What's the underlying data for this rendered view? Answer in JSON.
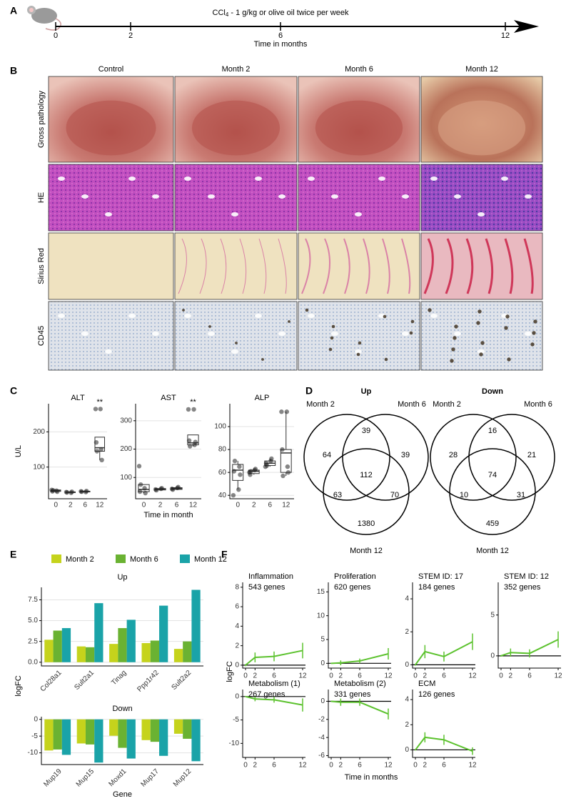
{
  "panel_labels": [
    "A",
    "B",
    "C",
    "D",
    "E",
    "F"
  ],
  "timeline": {
    "title": {
      "prefix": "CCl",
      "subscript": "4",
      "suffix": " - 1 g/kg or olive oil twice per week"
    },
    "ticks": [
      0,
      2,
      6,
      12
    ],
    "xlabel": "Time in months"
  },
  "histology": {
    "columns": [
      "Control",
      "Month 2",
      "Month 6",
      "Month 12"
    ],
    "rows": [
      "Gross pathology",
      "HE",
      "Sirius Red",
      "CD45"
    ]
  },
  "chart_data": [
    {
      "type": "box",
      "title": "ALT",
      "ylabel": "U/L",
      "annotation": "**",
      "categories": [
        "0",
        "2",
        "6",
        "12"
      ],
      "ylim": [
        10,
        280
      ],
      "yticks": [
        100,
        200
      ],
      "grid": true,
      "boxes": [
        {
          "whisker_low": 29,
          "q1": 31,
          "median": 33,
          "q3": 35,
          "whisker_high": 36,
          "points": [
            35,
            33,
            31,
            30,
            34
          ]
        },
        {
          "whisker_low": 27,
          "q1": 27.5,
          "median": 28.5,
          "q3": 29.5,
          "whisker_high": 30,
          "points": [
            29,
            27,
            28,
            30
          ]
        },
        {
          "whisker_low": 29,
          "q1": 29.5,
          "median": 30.5,
          "q3": 31.5,
          "whisker_high": 32,
          "points": [
            31,
            29,
            30,
            32
          ]
        },
        {
          "whisker_low": 120,
          "q1": 145,
          "median": 155,
          "q3": 185,
          "whisker_high": 185,
          "points": [
            265,
            265,
            170,
            150,
            145,
            120
          ]
        }
      ]
    },
    {
      "type": "box",
      "title": "AST",
      "xlabel": "Time in month",
      "annotation": "**",
      "categories": [
        "0",
        "2",
        "6",
        "12"
      ],
      "ylim": [
        25,
        360
      ],
      "yticks": [
        100,
        200,
        300
      ],
      "grid": true,
      "boxes": [
        {
          "whisker_low": 45,
          "q1": 50,
          "median": 58,
          "q3": 75,
          "whisker_high": 75,
          "points": [
            140,
            62,
            50,
            45,
            75
          ]
        },
        {
          "whisker_low": 55,
          "q1": 56,
          "median": 59,
          "q3": 61,
          "whisker_high": 62,
          "points": [
            58,
            60,
            55,
            62
          ]
        },
        {
          "whisker_low": 57,
          "q1": 58,
          "median": 61,
          "q3": 64,
          "whisker_high": 66,
          "points": [
            60,
            63,
            57,
            66
          ]
        },
        {
          "whisker_low": 210,
          "q1": 215,
          "median": 222,
          "q3": 250,
          "whisker_high": 250,
          "points": [
            340,
            340,
            230,
            215,
            210,
            225
          ]
        }
      ]
    },
    {
      "type": "box",
      "title": "ALP",
      "categories": [
        "0",
        "2",
        "6",
        "12"
      ],
      "ylim": [
        37,
        120
      ],
      "yticks": [
        40,
        60,
        80,
        100
      ],
      "grid": true,
      "boxes": [
        {
          "whisker_low": 45,
          "q1": 53,
          "median": 62,
          "q3": 67,
          "whisker_high": 70,
          "points": [
            40,
            45,
            61,
            65,
            70,
            58
          ]
        },
        {
          "whisker_low": 58,
          "q1": 59,
          "median": 61,
          "q3": 62,
          "whisker_high": 63,
          "points": [
            60,
            62,
            58,
            63,
            61
          ]
        },
        {
          "whisker_low": 65,
          "q1": 66,
          "median": 68,
          "q3": 70,
          "whisker_high": 72,
          "points": [
            65,
            70,
            68,
            72,
            66
          ]
        },
        {
          "whisker_low": 57,
          "q1": 60,
          "median": 77,
          "q3": 80,
          "whisker_high": 113,
          "points": [
            113,
            113,
            80,
            65,
            57,
            60
          ]
        }
      ]
    },
    {
      "type": "venn",
      "title": "Up",
      "sets": [
        "Month 2",
        "Month 6",
        "Month 12"
      ],
      "counts": [
        64,
        39,
        39,
        112,
        63,
        70,
        1380
      ]
    },
    {
      "type": "venn",
      "title": "Down",
      "sets": [
        "Month 2",
        "Month 6",
        "Month 12"
      ],
      "counts": [
        28,
        16,
        21,
        74,
        10,
        31,
        459
      ]
    },
    {
      "type": "grouped_bar",
      "ylabel": "logFC",
      "xlabel": "Gene",
      "series": [
        {
          "name": "Month 2",
          "color": "#c5d31c"
        },
        {
          "name": "Month 6",
          "color": "#6ab232"
        },
        {
          "name": "Month 12",
          "color": "#1aa3a8"
        }
      ],
      "panels": [
        {
          "title": "Up",
          "categories": [
            "Col28a1",
            "Sult2a1",
            "Tinag",
            "Ppp1r42",
            "Sult2a2"
          ],
          "values": [
            [
              2.7,
              1.9,
              2.2,
              2.3,
              1.6
            ],
            [
              3.8,
              1.8,
              4.1,
              2.6,
              2.5
            ],
            [
              4.1,
              7.1,
              5.1,
              6.8,
              8.7
            ]
          ],
          "ylim": [
            -0.45,
            9
          ],
          "yticks": [
            {
              "value": 0,
              "label": "0.0"
            },
            {
              "value": 2.5,
              "label": "2.5"
            },
            {
              "value": 5,
              "label": "5.0"
            },
            {
              "value": 7.5,
              "label": "7.5"
            }
          ]
        },
        {
          "title": "Down",
          "categories": [
            "Mup19",
            "Mup15",
            "Moxd1",
            "Mup17",
            "Mup12"
          ],
          "values": [
            [
              -9.3,
              -7.2,
              -4.9,
              -6.2,
              -4.3
            ],
            [
              -9.0,
              -7.5,
              -8.5,
              -6.7,
              -5.8
            ],
            [
              -10.6,
              -12.9,
              -11.7,
              -10.9,
              -12.5
            ]
          ],
          "ylim": [
            -13.5,
            0.8
          ],
          "yticks": [
            -10,
            -5,
            0
          ]
        }
      ]
    },
    {
      "type": "line",
      "xlabel": "Time in months",
      "ylabel": "logFC",
      "color": "#5cc22e",
      "x": [
        0,
        2,
        6,
        12
      ],
      "xlim": [
        -0.6,
        12.6
      ],
      "xticks": [
        0,
        2,
        6,
        12
      ],
      "panels": [
        {
          "title": "Inflammation",
          "subtitle": "543 genes",
          "values": [
            0,
            0.8,
            0.9,
            1.5
          ],
          "errors": [
            0.1,
            0.5,
            0.5,
            0.8
          ],
          "ylim": [
            -0.3,
            8.5
          ],
          "yticks": [
            0,
            2,
            4,
            6,
            8
          ]
        },
        {
          "title": "Proliferation",
          "subtitle": "620 genes",
          "values": [
            0,
            0.1,
            0.5,
            2
          ],
          "errors": [
            0.1,
            0.5,
            0.5,
            1.2
          ],
          "ylim": [
            -1,
            17
          ],
          "yticks": [
            0,
            5,
            10,
            15
          ]
        },
        {
          "title": "STEM ID: 17",
          "subtitle": "184 genes",
          "values": [
            0,
            0.8,
            0.5,
            1.4
          ],
          "errors": [
            0.05,
            0.4,
            0.3,
            0.5
          ],
          "ylim": [
            -0.2,
            5
          ],
          "yticks": [
            0,
            2,
            4
          ]
        },
        {
          "title": "STEM ID: 12",
          "subtitle": "352 genes",
          "values": [
            0,
            0.4,
            0.3,
            2
          ],
          "errors": [
            0.1,
            0.5,
            0.5,
            1
          ],
          "ylim": [
            -1.5,
            9
          ],
          "yticks": [
            0,
            5
          ]
        },
        {
          "title": "Metabolism (1)",
          "subtitle": "267 genes",
          "values": [
            0,
            -0.5,
            -0.7,
            -1.8
          ],
          "errors": [
            0.1,
            0.5,
            0.6,
            1.4
          ],
          "ylim": [
            -13,
            1.5
          ],
          "yticks": [
            -10,
            -5,
            0
          ]
        },
        {
          "title": "Metabolism (2)",
          "subtitle": "331 genes",
          "values": [
            0,
            -0.1,
            -0.1,
            -1.4
          ],
          "errors": [
            0.05,
            0.4,
            0.4,
            0.6
          ],
          "ylim": [
            -6.2,
            1.3
          ],
          "yticks": [
            -6,
            -4,
            -2,
            0
          ]
        },
        {
          "title": "ECM",
          "subtitle": "126 genes",
          "values": [
            0,
            1,
            0.8,
            -0.1
          ],
          "errors": [
            0.05,
            0.4,
            0.4,
            0.3
          ],
          "ylim": [
            -0.6,
            4.8
          ],
          "yticks": [
            0,
            2,
            4
          ]
        }
      ]
    }
  ]
}
